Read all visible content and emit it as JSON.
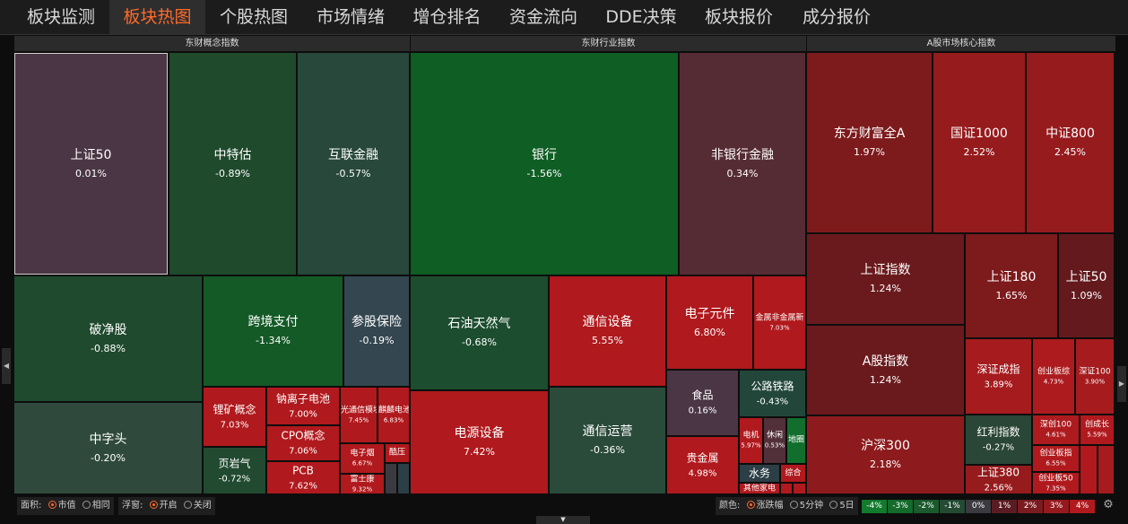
{
  "nav": {
    "tabs": [
      "板块监测",
      "板块热图",
      "个股热图",
      "市场情绪",
      "增仓排名",
      "资金流向",
      "DDE决策",
      "板块报价",
      "成分报价"
    ],
    "active_index": 1
  },
  "sections": [
    "东财概念指数",
    "东财行业指数",
    "A股市场核心指数"
  ],
  "tiles": [
    {
      "name": "上证50",
      "value": "0.01%",
      "color": "#4a3644"
    },
    {
      "name": "中特估",
      "value": "-0.89%",
      "color": "#1f4a2c"
    },
    {
      "name": "互联金融",
      "value": "-0.57%",
      "color": "#27483a"
    },
    {
      "name": "破净股",
      "value": "-0.88%",
      "color": "#1f4a2e"
    },
    {
      "name": "跨境支付",
      "value": "-1.34%",
      "color": "#145a26"
    },
    {
      "name": "参股保险",
      "value": "-0.19%",
      "color": "#344650"
    },
    {
      "name": "中字头",
      "value": "-0.20%",
      "color": "#2f4a3c"
    },
    {
      "name": "锂矿概念",
      "value": "7.03%",
      "color": "#b0191d"
    },
    {
      "name": "钠离子电池",
      "value": "7.00%",
      "color": "#b0191d"
    },
    {
      "name": "光通信模块",
      "value": "7.45%",
      "color": "#b0191d"
    },
    {
      "name": "麒麟电池",
      "value": "6.83%",
      "color": "#b0191d"
    },
    {
      "name": "CPO概念",
      "value": "7.06%",
      "color": "#b0191d"
    },
    {
      "name": "页岩气",
      "value": "-0.72%",
      "color": "#214a30"
    },
    {
      "name": "PCB",
      "value": "7.62%",
      "color": "#b0191d"
    },
    {
      "name": "电子烟",
      "value": "6.67%",
      "color": "#b0191d"
    },
    {
      "name": "富士康",
      "value": "9.32%",
      "color": "#b0191d"
    },
    {
      "name": "酷压",
      "value": "",
      "color": "#b0191d"
    },
    {
      "name": "银行",
      "value": "-1.56%",
      "color": "#0f5e24"
    },
    {
      "name": "非银行金融",
      "value": "0.34%",
      "color": "#562c34"
    },
    {
      "name": "石油天然气",
      "value": "-0.68%",
      "color": "#1c4d2e"
    },
    {
      "name": "通信设备",
      "value": "5.55%",
      "color": "#b0191d"
    },
    {
      "name": "电子元件",
      "value": "6.80%",
      "color": "#b0191d"
    },
    {
      "name": "金属非金属新",
      "value": "7.03%",
      "color": "#b0191d"
    },
    {
      "name": "电源设备",
      "value": "7.42%",
      "color": "#b0191d"
    },
    {
      "name": "通信运营",
      "value": "-0.36%",
      "color": "#2a4a3a"
    },
    {
      "name": "食品",
      "value": "0.16%",
      "color": "#4a3644"
    },
    {
      "name": "公路铁路",
      "value": "-0.43%",
      "color": "#22473a"
    },
    {
      "name": "贵金属",
      "value": "4.98%",
      "color": "#b0191d"
    },
    {
      "name": "电机",
      "value": "5.97%",
      "color": "#b0191d"
    },
    {
      "name": "休闲",
      "value": "0.53%",
      "color": "#52303a"
    },
    {
      "name": "地圈",
      "value": "",
      "color": "#126e2c"
    },
    {
      "name": "水务",
      "value": "",
      "color": "#2c3e46"
    },
    {
      "name": "综合",
      "value": "",
      "color": "#b0191d"
    },
    {
      "name": "其他家电",
      "value": "",
      "color": "#b0191d"
    },
    {
      "name": "东方财富全A",
      "value": "1.97%",
      "color": "#7d1a1c"
    },
    {
      "name": "国证1000",
      "value": "2.52%",
      "color": "#961b1d"
    },
    {
      "name": "中证800",
      "value": "2.45%",
      "color": "#961b1d"
    },
    {
      "name": "上证指数",
      "value": "1.24%",
      "color": "#6a1a1d"
    },
    {
      "name": "上证180",
      "value": "1.65%",
      "color": "#7d1a1c"
    },
    {
      "name": "上证50",
      "value": "1.09%",
      "color": "#641a1d"
    },
    {
      "name": "A股指数",
      "value": "1.24%",
      "color": "#6a1a1d"
    },
    {
      "name": "深证成指",
      "value": "3.89%",
      "color": "#a51b1e"
    },
    {
      "name": "创业板综",
      "value": "4.73%",
      "color": "#ad1b1e"
    },
    {
      "name": "深证100",
      "value": "3.90%",
      "color": "#a51b1e"
    },
    {
      "name": "沪深300",
      "value": "2.18%",
      "color": "#8d1b1d"
    },
    {
      "name": "红利指数",
      "value": "-0.27%",
      "color": "#2a4636"
    },
    {
      "name": "深创100",
      "value": "4.61%",
      "color": "#ad1b1e"
    },
    {
      "name": "创成长",
      "value": "5.59%",
      "color": "#b0191d"
    },
    {
      "name": "创业板指",
      "value": "6.55%",
      "color": "#b0191d"
    },
    {
      "name": "上证380",
      "value": "2.56%",
      "color": "#961b1d"
    },
    {
      "name": "创业板50",
      "value": "7.35%",
      "color": "#b0191d"
    }
  ],
  "controls": {
    "area_label": "面积:",
    "area_options": [
      "市值",
      "相同"
    ],
    "float_label": "浮窗:",
    "float_options": [
      "开启",
      "关闭"
    ],
    "color_label": "颜色:",
    "color_options": [
      "涨跌幅",
      "5分钟",
      "5日"
    ]
  },
  "legend": [
    {
      "label": "-4%",
      "color": "#127a2c"
    },
    {
      "label": "-3%",
      "color": "#136a2a"
    },
    {
      "label": "-2%",
      "color": "#1a5a2c"
    },
    {
      "label": "-1%",
      "color": "#244a33"
    },
    {
      "label": "0%",
      "color": "#3a3a40"
    },
    {
      "label": "1%",
      "color": "#5a1c22"
    },
    {
      "label": "2%",
      "color": "#7a1b20"
    },
    {
      "label": "3%",
      "color": "#96191d"
    },
    {
      "label": "4%",
      "color": "#b0191d"
    }
  ],
  "icons": {
    "gear": "gear-icon",
    "left": "left-arrow-icon",
    "right": "right-arrow-icon",
    "down": "down-arrow-icon"
  }
}
